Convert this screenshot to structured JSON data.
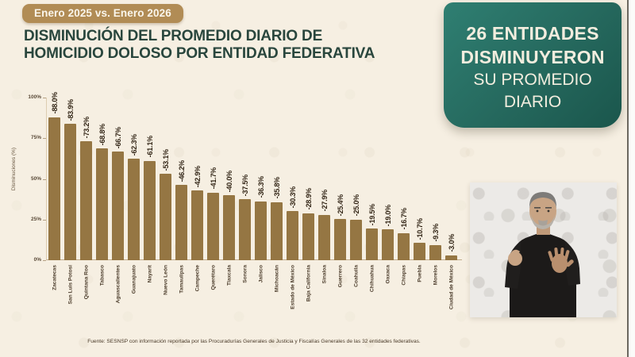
{
  "badge": {
    "label": "Enero 2025 vs. Enero 2026"
  },
  "title": {
    "line1": "DISMINUCIÓN DEL PROMEDIO DIARIO DE",
    "line2": "HOMICIDIO DOLOSO POR ENTIDAD FEDERATIVA"
  },
  "side_panel": {
    "line1": "26 ENTIDADES",
    "line2": "DISMINUYERON",
    "line3": "SU PROMEDIO",
    "line4": "DIARIO"
  },
  "chart_data": {
    "type": "bar",
    "title": "DISMINUCIÓN DEL PROMEDIO DIARIO DE HOMICIDIO DOLOSO POR ENTIDAD FEDERATIVA",
    "xlabel": "",
    "ylabel": "Disminuciones (%)",
    "ylim": [
      0,
      100
    ],
    "y_ticks": [
      "0%",
      "25%",
      "50%",
      "75%",
      "100%"
    ],
    "grid": false,
    "legend": false,
    "bar_color": "#957643",
    "categories": [
      "Zacatecas",
      "San Luis Potosí",
      "Quintana Roo",
      "Tabasco",
      "Aguascalientes",
      "Guanajuato",
      "Nayarit",
      "Nuevo León",
      "Tamaulipas",
      "Campeche",
      "Querétaro",
      "Tlaxcala",
      "Sonora",
      "Jalisco",
      "Michoacán",
      "Estado de México",
      "Baja California",
      "Sinaloa",
      "Guerrero",
      "Coahuila",
      "Chihuahua",
      "Oaxaca",
      "Chiapas",
      "Puebla",
      "Morelos",
      "Ciudad de México"
    ],
    "values": [
      -88.0,
      -83.9,
      -73.2,
      -68.8,
      -66.7,
      -62.3,
      -61.1,
      -53.1,
      -46.2,
      -42.9,
      -41.7,
      -40.0,
      -37.5,
      -36.3,
      -35.8,
      -30.3,
      -28.9,
      -27.9,
      -25.4,
      -25.0,
      -19.5,
      -19.0,
      -16.7,
      -10.7,
      -9.3,
      -3.0
    ],
    "value_labels": [
      "-88.0%",
      "-83.9%",
      "-73.2%",
      "-68.8%",
      "-66.7%",
      "-62.3%",
      "-61.1%",
      "-53.1%",
      "-46.2%",
      "-42.9%",
      "-41.7%",
      "-40.0%",
      "-37.5%",
      "-36.3%",
      "-35.8%",
      "-30.3%",
      "-28.9%",
      "-27.9%",
      "-25.4%",
      "-25.0%",
      "-19.5%",
      "-19.0%",
      "-16.7%",
      "-10.7%",
      "-9.3%",
      "-3.0%"
    ]
  },
  "footer": {
    "source": "Fuente: SESNSP con información reportada por las Procuradurías Generales de Justicia y Fiscalías Generales de las 32 entidades federativas."
  },
  "colors": {
    "background": "#f6efe2",
    "badge": "#b18c55",
    "title_text": "#29463d",
    "bar": "#957643",
    "panel_green_start": "#2f7f72",
    "panel_green_end": "#1a564c",
    "panel_text": "#f2edde"
  },
  "interpreter": {
    "description": "sign-language-interpreter"
  }
}
